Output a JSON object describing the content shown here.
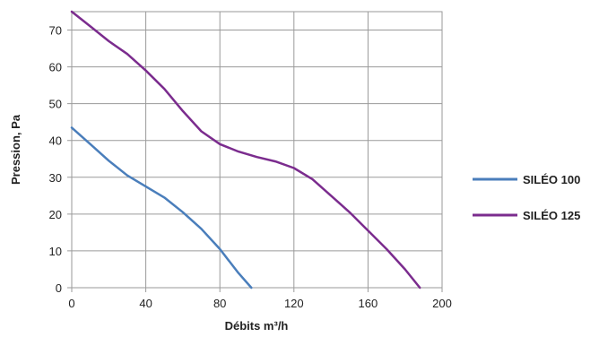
{
  "chart_data": {
    "type": "line",
    "xlabel": "Débits m³/h",
    "ylabel": "Pression, Pa",
    "xlim": [
      0,
      200
    ],
    "ylim": [
      0,
      75
    ],
    "xticks": [
      0,
      40,
      80,
      120,
      160,
      200
    ],
    "yticks": [
      0,
      10,
      20,
      30,
      40,
      50,
      60,
      70
    ],
    "grid": true,
    "legend_position": "right",
    "series": [
      {
        "name": "SILÉO 100",
        "color": "#4a7ebb",
        "x": [
          0,
          10,
          20,
          30,
          40,
          50,
          60,
          70,
          80,
          90,
          97
        ],
        "y": [
          43.5,
          39,
          34.5,
          30.5,
          27.5,
          24.5,
          20.5,
          16,
          10.5,
          4,
          0
        ]
      },
      {
        "name": "SILÉO 125",
        "color": "#7b2c8e",
        "x": [
          0,
          10,
          20,
          30,
          40,
          50,
          60,
          70,
          80,
          90,
          100,
          110,
          120,
          130,
          140,
          150,
          160,
          170,
          180,
          188
        ],
        "y": [
          75,
          71,
          67,
          63.5,
          59,
          54,
          48,
          42.5,
          39,
          37,
          35.5,
          34.3,
          32.5,
          29.5,
          25,
          20.5,
          15.5,
          10.5,
          5,
          0
        ]
      }
    ]
  }
}
